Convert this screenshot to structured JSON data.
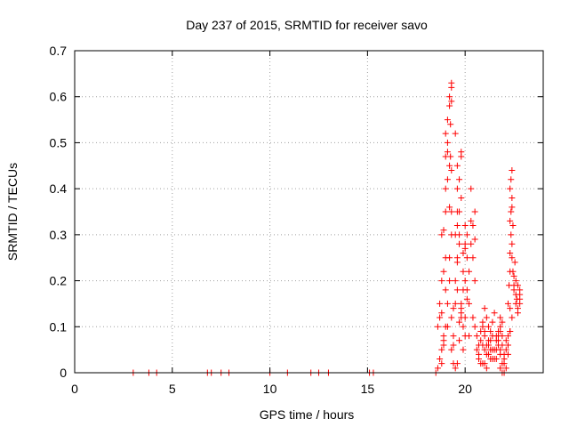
{
  "chart_data": {
    "type": "scatter",
    "title": "Day 237 of 2015, SRMTID for receiver savo",
    "xlabel": "GPS time / hours",
    "ylabel": "SRMTID / TECUs",
    "xlim": [
      0,
      24
    ],
    "ylim": [
      0,
      0.7
    ],
    "xticks": [
      0,
      5,
      10,
      15,
      20
    ],
    "xtick_labels": [
      "0",
      "5",
      "10",
      "15",
      "20"
    ],
    "yticks": [
      0,
      0.1,
      0.2,
      0.3,
      0.4,
      0.5,
      0.6,
      0.7
    ],
    "ytick_labels": [
      "0",
      "0.1",
      "0.2",
      "0.3",
      "0.4",
      "0.5",
      "0.6",
      "0.7"
    ],
    "grid": true,
    "marker": "plus",
    "marker_color": "#ff0000",
    "series": [
      {
        "name": "SRMTID",
        "x": [
          3.0,
          3.8,
          4.2,
          6.8,
          7.0,
          7.5,
          7.9,
          10.0,
          10.9,
          12.1,
          12.5,
          13.0,
          15.1,
          15.3,
          18.5,
          18.6,
          18.7,
          18.8,
          18.9,
          18.6,
          18.7,
          18.8,
          18.9,
          18.7,
          18.8,
          18.9,
          19.0,
          18.8,
          18.9,
          19.0,
          18.8,
          18.9,
          19.0,
          19.0,
          19.0,
          19.1,
          19.0,
          19.1,
          19.0,
          19.1,
          19.1,
          19.2,
          19.2,
          19.2,
          19.3,
          19.3,
          19.3,
          19.25,
          19.25,
          19.3,
          19.3,
          19.2,
          19.2,
          19.1,
          19.1,
          19.3,
          19.3,
          19.4,
          19.4,
          19.5,
          19.5,
          19.5,
          19.6,
          19.6,
          19.6,
          19.6,
          19.6,
          19.7,
          19.7,
          19.7,
          19.8,
          19.8,
          19.8,
          19.7,
          19.9,
          19.9,
          19.9,
          19.8,
          19.8,
          19.9,
          20.0,
          20.0,
          20.0,
          20.1,
          20.1,
          20.1,
          20.0,
          20.0,
          20.2,
          20.2,
          20.3,
          20.3,
          20.3,
          20.4,
          20.4,
          20.5,
          20.5,
          20.5,
          19.4,
          19.5,
          19.6,
          19.7,
          19.8,
          19.9,
          20.0,
          20.1,
          20.2,
          19.2,
          19.3,
          19.5,
          19.6,
          19.7,
          19.4,
          19.6,
          19.8,
          20.4,
          20.5,
          20.6,
          20.7,
          20.8,
          20.9,
          21.0,
          20.6,
          20.7,
          20.8,
          20.9,
          21.0,
          21.1,
          21.2,
          21.3,
          21.4,
          20.7,
          20.8,
          20.9,
          21.0,
          21.1,
          21.2,
          21.3,
          21.4,
          21.5,
          21.0,
          21.1,
          21.2,
          21.3,
          21.4,
          21.5,
          21.6,
          21.7,
          21.8,
          21.1,
          21.3,
          21.5,
          21.6,
          21.7,
          21.8,
          20.9,
          21.0,
          21.2,
          21.4,
          21.6,
          21.7,
          21.9,
          21.9,
          22.0,
          22.0,
          22.1,
          22.1,
          22.2,
          22.2,
          22.3,
          21.6,
          21.8,
          21.9,
          22.0,
          22.1,
          22.2,
          21.7,
          21.8,
          21.9,
          21.8,
          21.9,
          21.8,
          22.0,
          22.2,
          22.25,
          22.3,
          22.3,
          22.35,
          22.4,
          22.3,
          22.35,
          22.4,
          22.3,
          22.35,
          22.4,
          22.4,
          22.45,
          22.4,
          22.45,
          22.5,
          22.5,
          22.5,
          22.55,
          22.6,
          22.6,
          22.6,
          22.65,
          22.7,
          22.7,
          22.7,
          22.8,
          22.8,
          22.8,
          22.8,
          22.3,
          22.4,
          22.2,
          22.3
        ],
        "y": [
          0,
          0,
          0,
          0,
          0,
          0,
          0,
          0,
          0,
          0,
          0,
          0,
          0,
          0,
          0,
          0.01,
          0.03,
          0.05,
          0.08,
          0.1,
          0.12,
          0.02,
          0.06,
          0.15,
          0.13,
          0.07,
          0.1,
          0.2,
          0.22,
          0.18,
          0.3,
          0.31,
          0.25,
          0.35,
          0.4,
          0.42,
          0.47,
          0.48,
          0.52,
          0.55,
          0.5,
          0.45,
          0.58,
          0.6,
          0.62,
          0.59,
          0.63,
          0.54,
          0.47,
          0.35,
          0.3,
          0.25,
          0.2,
          0.15,
          0.1,
          0.12,
          0.05,
          0.02,
          0.08,
          0.15,
          0.2,
          0.3,
          0.25,
          0.35,
          0.4,
          0.45,
          0.32,
          0.28,
          0.35,
          0.42,
          0.48,
          0.47,
          0.38,
          0.3,
          0.22,
          0.18,
          0.1,
          0.15,
          0.13,
          0.26,
          0.2,
          0.28,
          0.32,
          0.3,
          0.25,
          0.18,
          0.12,
          0.08,
          0.15,
          0.22,
          0.28,
          0.33,
          0.4,
          0.32,
          0.25,
          0.2,
          0.35,
          0.29,
          0.14,
          0.01,
          0.18,
          0.07,
          0.12,
          0.05,
          0.27,
          0.16,
          0.08,
          0.36,
          0.44,
          0.52,
          0.24,
          0.11,
          0.06,
          0.02,
          0.14,
          0.12,
          0.1,
          0.08,
          0.06,
          0.09,
          0.11,
          0.14,
          0.05,
          0.04,
          0.07,
          0.1,
          0.08,
          0.06,
          0.04,
          0.05,
          0.08,
          0.03,
          0.02,
          0.06,
          0.09,
          0.12,
          0.1,
          0.07,
          0.05,
          0.03,
          0.02,
          0.04,
          0.06,
          0.09,
          0.11,
          0.13,
          0.08,
          0.06,
          0.04,
          0.01,
          0.03,
          0.05,
          0.07,
          0.09,
          0.1,
          0.02,
          0.05,
          0.07,
          0.03,
          0.05,
          0.08,
          0.06,
          0.0,
          0.02,
          0.04,
          0.05,
          0.07,
          0.08,
          0.06,
          0.09,
          0.03,
          0.01,
          0.02,
          0.03,
          0.01,
          0.04,
          0.07,
          0.09,
          0.11,
          0.12,
          0.08,
          0.05,
          0.0,
          0.15,
          0.19,
          0.22,
          0.26,
          0.3,
          0.28,
          0.33,
          0.35,
          0.38,
          0.4,
          0.42,
          0.44,
          0.36,
          0.32,
          0.25,
          0.22,
          0.19,
          0.18,
          0.21,
          0.24,
          0.2,
          0.17,
          0.15,
          0.16,
          0.14,
          0.13,
          0.19,
          0.17,
          0.15,
          0.16,
          0.18,
          0.09,
          0.12,
          0.06,
          0.14
        ]
      }
    ]
  }
}
